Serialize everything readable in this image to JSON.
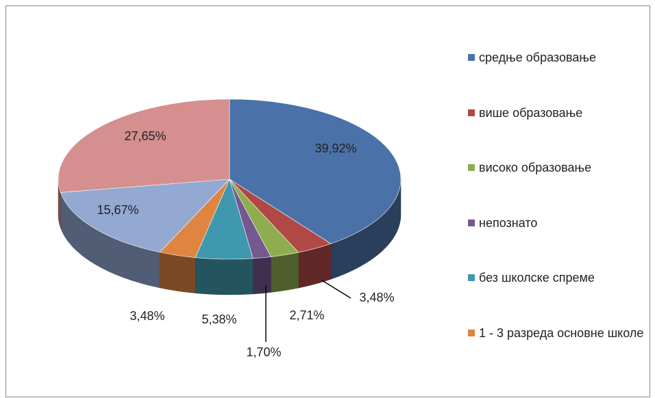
{
  "chart_data": {
    "type": "pie3d",
    "categories": [
      "средње образовање",
      "више образовање",
      "високо образовање",
      "непознато",
      "без школске спреме",
      "1 - 3 разреда основне школе",
      null,
      null
    ],
    "values": [
      39.92,
      3.48,
      2.71,
      1.7,
      5.38,
      3.48,
      15.67,
      27.65
    ],
    "value_labels": [
      "39,92%",
      "3,48%",
      "2,71%",
      "1,70%",
      "5,38%",
      "3,48%",
      "15,67%",
      "27,65%"
    ],
    "colors": [
      "#4a72a8",
      "#b04946",
      "#8fad4f",
      "#74588f",
      "#3f98ad",
      "#dd8541",
      "#93a9d2",
      "#d48f8e"
    ]
  }
}
